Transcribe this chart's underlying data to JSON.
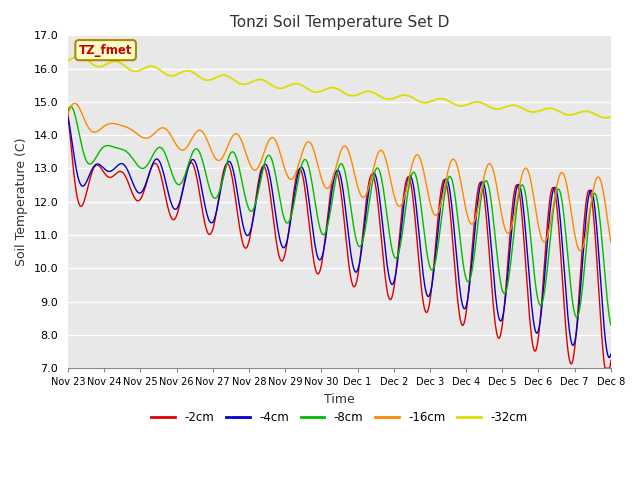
{
  "title": "Tonzi Soil Temperature Set D",
  "xlabel": "Time",
  "ylabel": "Soil Temperature (C)",
  "ylim": [
    7.0,
    17.0
  ],
  "yticks": [
    7.0,
    8.0,
    9.0,
    10.0,
    11.0,
    12.0,
    13.0,
    14.0,
    15.0,
    16.0,
    17.0
  ],
  "xtick_labels": [
    "Nov 23",
    "Nov 24",
    "Nov 25",
    "Nov 26",
    "Nov 27",
    "Nov 28",
    "Nov 29",
    "Nov 30",
    "Dec 1",
    "Dec 2",
    "Dec 3",
    "Dec 4",
    "Dec 5",
    "Dec 6",
    "Dec 7",
    "Dec 8"
  ],
  "legend_labels": [
    "-2cm",
    "-4cm",
    "-8cm",
    "-16cm",
    "-32cm"
  ],
  "line_colors": [
    "#dd0000",
    "#0000cc",
    "#00bb00",
    "#ff8800",
    "#dddd00"
  ],
  "annotation_text": "TZ_fmet",
  "annotation_bg": "#ffffcc",
  "annotation_border": "#aa8800",
  "annotation_text_color": "#cc0000",
  "fig_bg": "#ffffff",
  "plot_bg": "#e8e8e8"
}
